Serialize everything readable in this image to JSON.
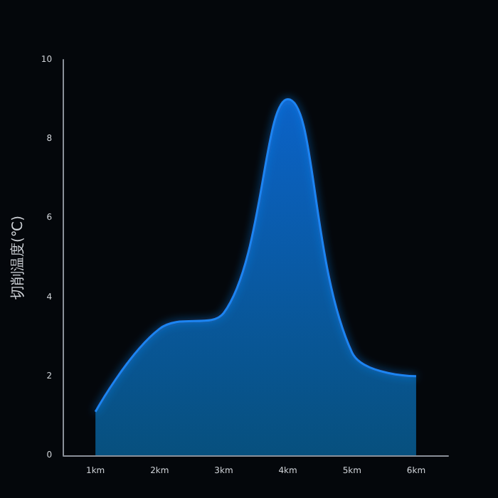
{
  "chart_data": {
    "type": "area",
    "ylabel": "切削温度(℃)",
    "categories": [
      "1km",
      "2km",
      "3km",
      "4km",
      "5km",
      "6km"
    ],
    "values": [
      1.1,
      3.2,
      3.6,
      9.0,
      2.6,
      2.0
    ],
    "color": "#0b63c8",
    "ylim": [
      0,
      10
    ],
    "yticks": [
      0,
      2,
      4,
      6,
      8,
      10
    ],
    "grid": false,
    "marker": "none"
  }
}
